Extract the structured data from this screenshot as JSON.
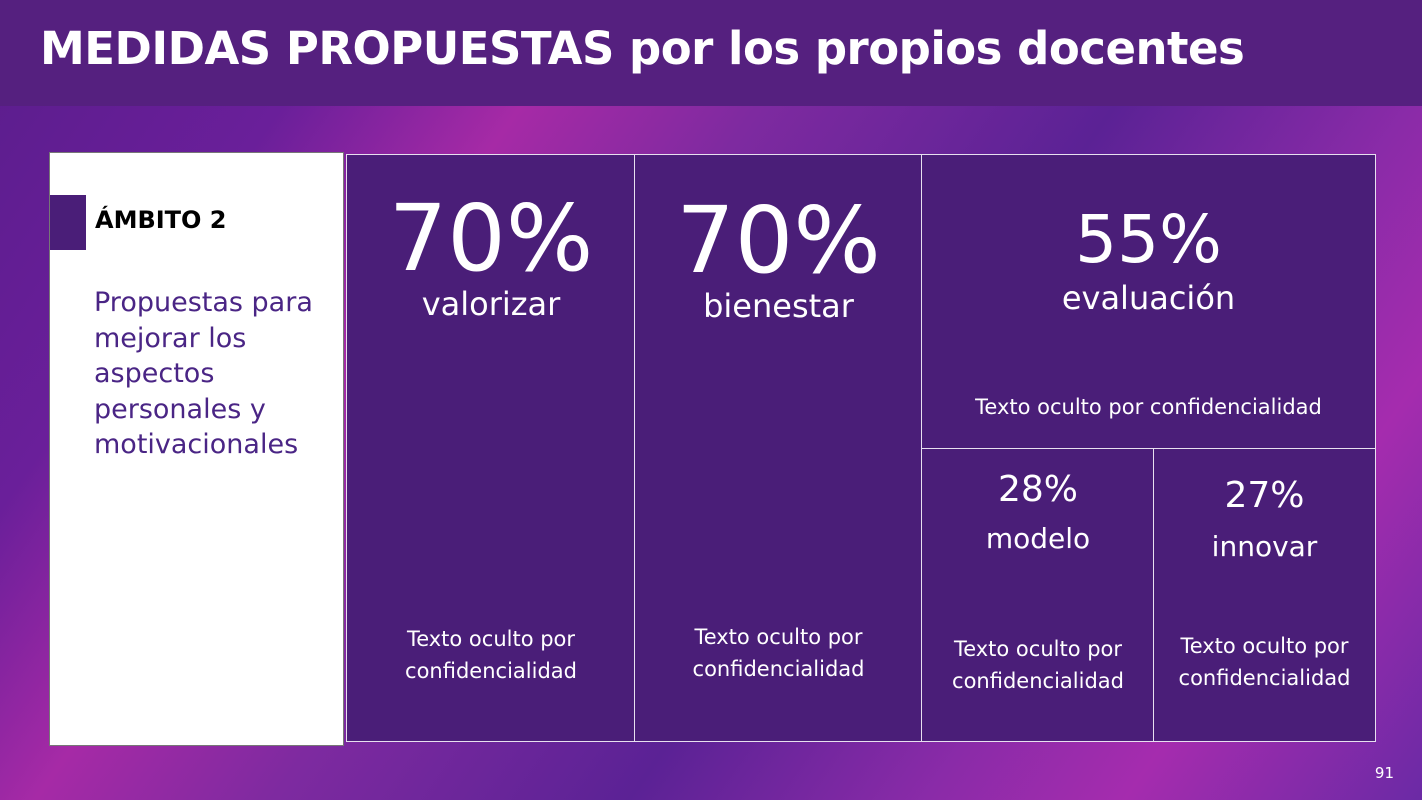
{
  "title": "MEDIDAS PROPUESTAS por los propios docentes",
  "sidebar": {
    "heading": "ÁMBITO 2",
    "description": "Propuestas para mejorar los aspectos personales y motivacionales"
  },
  "cards": [
    {
      "percent": "70%",
      "label": "valorizar",
      "text": "Texto oculto por confidencialidad"
    },
    {
      "percent": "70%",
      "label": "bienestar",
      "text": "Texto oculto por confidencialidad"
    },
    {
      "percent": "55%",
      "label": "evaluación",
      "text": "Texto oculto por confidencialidad"
    },
    {
      "percent": "28%",
      "label": "modelo",
      "text": "Texto oculto por confidencialidad"
    },
    {
      "percent": "27%",
      "label": "innovar",
      "text": "Texto oculto por confidencialidad"
    }
  ],
  "page_number": "91"
}
